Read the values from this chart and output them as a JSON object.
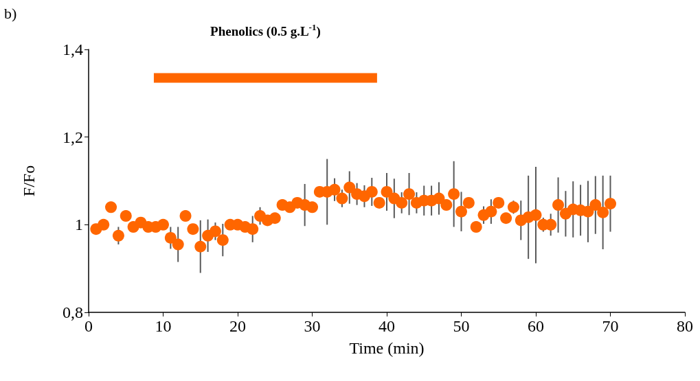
{
  "chart_data": {
    "type": "scatter",
    "xlabel": "Time (min)",
    "ylabel": "F/Fo",
    "annotations": [
      "b)"
    ],
    "xlim": [
      0,
      80
    ],
    "xticks": [
      0,
      10,
      20,
      30,
      40,
      50,
      60,
      70,
      80
    ],
    "ylim": [
      0.8,
      1.4
    ],
    "yticks": [
      {
        "value": 0.8,
        "label": "0,8"
      },
      {
        "value": 1,
        "label": "1"
      },
      {
        "value": 1.2,
        "label": "1,2"
      },
      {
        "value": 1.4,
        "label": "1,4"
      }
    ],
    "grid": false,
    "legend": false,
    "series": [
      {
        "color": "#ff6600",
        "marker": "circle",
        "x": [
          1,
          2,
          3,
          4,
          5,
          6,
          7,
          8,
          9,
          10,
          11,
          12,
          13,
          14,
          15,
          16,
          17,
          18,
          19,
          20,
          21,
          22,
          23,
          24,
          25,
          26,
          27,
          28,
          29,
          30,
          31,
          32,
          33,
          34,
          35,
          36,
          37,
          38,
          39,
          40,
          41,
          42,
          43,
          44,
          45,
          46,
          47,
          48,
          49,
          50,
          51,
          52,
          53,
          54,
          55,
          56,
          57,
          58,
          59,
          60,
          61,
          62,
          63,
          64,
          65,
          66,
          67,
          68,
          69,
          70
        ],
        "values": [
          0.99,
          1.0,
          1.04,
          0.975,
          1.02,
          0.995,
          1.005,
          0.995,
          0.995,
          1.0,
          0.97,
          0.955,
          1.02,
          0.99,
          0.95,
          0.975,
          0.985,
          0.965,
          1.0,
          1.0,
          0.995,
          0.99,
          1.02,
          1.01,
          1.015,
          1.045,
          1.04,
          1.05,
          1.045,
          1.04,
          1.075,
          1.075,
          1.08,
          1.06,
          1.085,
          1.07,
          1.065,
          1.075,
          1.05,
          1.075,
          1.06,
          1.05,
          1.07,
          1.05,
          1.055,
          1.055,
          1.06,
          1.045,
          1.07,
          1.03,
          1.05,
          0.995,
          1.022,
          1.03,
          1.05,
          1.015,
          1.04,
          1.01,
          1.017,
          1.022,
          1.0,
          1.0,
          1.045,
          1.025,
          1.035,
          1.033,
          1.03,
          1.045,
          1.028,
          1.048
        ],
        "errors": [
          null,
          null,
          null,
          0.02,
          null,
          null,
          null,
          null,
          null,
          null,
          0.025,
          0.04,
          null,
          null,
          0.06,
          0.037,
          0.02,
          0.037,
          null,
          null,
          null,
          0.03,
          0.02,
          null,
          null,
          null,
          null,
          null,
          0.048,
          null,
          null,
          0.075,
          0.026,
          0.02,
          0.037,
          0.025,
          0.025,
          0.032,
          null,
          0.043,
          0.045,
          0.024,
          0.048,
          0.024,
          0.034,
          0.034,
          0.037,
          null,
          0.075,
          0.045,
          null,
          null,
          0.02,
          0.028,
          null,
          null,
          0.015,
          0.045,
          0.095,
          0.11,
          0.016,
          0.025,
          0.063,
          0.052,
          0.064,
          0.058,
          0.07,
          0.066,
          0.084,
          0.064
        ]
      },
      {
        "type": "line",
        "name": "Phenolics (0.5 g.L$^{-1}$)",
        "color": "#ff6600",
        "x": [
          8.75,
          38.7
        ],
        "values": [
          1.335,
          1.335
        ]
      }
    ]
  }
}
